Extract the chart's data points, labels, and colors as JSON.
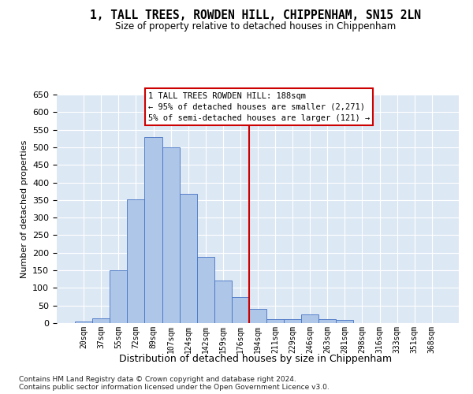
{
  "title": "1, TALL TREES, ROWDEN HILL, CHIPPENHAM, SN15 2LN",
  "subtitle": "Size of property relative to detached houses in Chippenham",
  "xlabel": "Distribution of detached houses by size in Chippenham",
  "ylabel": "Number of detached properties",
  "categories": [
    "20sqm",
    "37sqm",
    "55sqm",
    "72sqm",
    "89sqm",
    "107sqm",
    "124sqm",
    "142sqm",
    "159sqm",
    "176sqm",
    "194sqm",
    "211sqm",
    "229sqm",
    "246sqm",
    "263sqm",
    "281sqm",
    "298sqm",
    "316sqm",
    "333sqm",
    "351sqm",
    "368sqm"
  ],
  "values": [
    5,
    13,
    150,
    353,
    528,
    500,
    368,
    188,
    122,
    75,
    40,
    12,
    12,
    25,
    12,
    10,
    0,
    0,
    0,
    0,
    0
  ],
  "bar_color": "#aec6e8",
  "bar_edge_color": "#4472c4",
  "background_color": "#dde8f5",
  "grid_color": "#ffffff",
  "vline_x_index": 9.5,
  "vline_color": "#cc0000",
  "annotation_title": "1 TALL TREES ROWDEN HILL: 188sqm",
  "annotation_line1": "← 95% of detached houses are smaller (2,271)",
  "annotation_line2": "5% of semi-detached houses are larger (121) →",
  "annotation_box_color": "#ffffff",
  "annotation_box_edge": "#cc0000",
  "footnote1": "Contains HM Land Registry data © Crown copyright and database right 2024.",
  "footnote2": "Contains public sector information licensed under the Open Government Licence v3.0.",
  "ylim": [
    0,
    650
  ],
  "yticks": [
    0,
    50,
    100,
    150,
    200,
    250,
    300,
    350,
    400,
    450,
    500,
    550,
    600,
    650
  ]
}
